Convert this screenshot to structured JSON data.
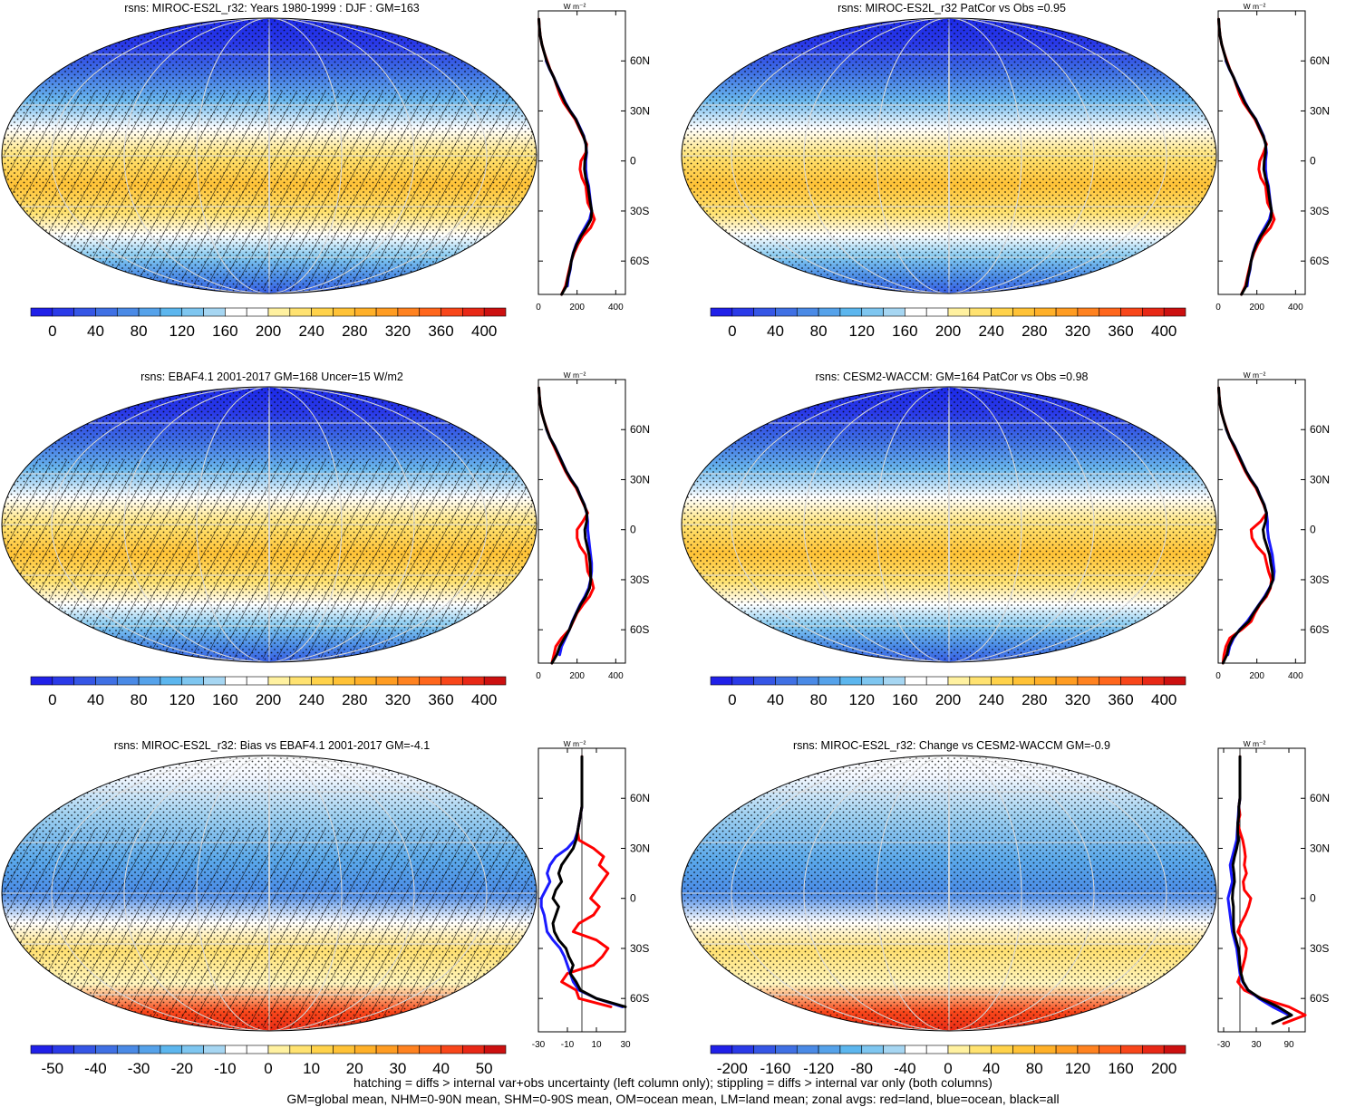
{
  "footer": {
    "line1": "hatching = diffs > internal var+obs uncertainty (left column only); stippling = diffs > internal var only (both columns)",
    "line2": "GM=global mean, NHM=0-90N mean, SHM=0-90S mean, OM=ocean mean, LM=land mean; zonal avgs: red=land, blue=ocean, black=all"
  },
  "colors": {
    "land": "#ff0000",
    "ocean": "#1a1aff",
    "all": "#000000",
    "abs_scale": [
      "#2020e8",
      "#2a3ae8",
      "#3556e6",
      "#3f70e4",
      "#4a8ae6",
      "#55a2ea",
      "#5cb6ee",
      "#7ec6f0",
      "#a6d6f2",
      "#ffffff",
      "#ffffff",
      "#fff1a0",
      "#ffe270",
      "#ffd24a",
      "#ffc236",
      "#ffb028",
      "#ff9c22",
      "#ff8220",
      "#ff661c",
      "#f8461a",
      "#e82816",
      "#cc1010"
    ],
    "diff_scale": [
      "#2020e8",
      "#2a3ae8",
      "#3556e6",
      "#3f70e4",
      "#4a8ae6",
      "#55a2ea",
      "#5cb6ee",
      "#7ec6f0",
      "#a6d6f2",
      "#ffffff",
      "#ffffff",
      "#fff1a0",
      "#ffe270",
      "#ffd24a",
      "#ffc236",
      "#ffb028",
      "#ff9c22",
      "#ff8220",
      "#ff661c",
      "#f8461a",
      "#e82816",
      "#cc1010"
    ]
  },
  "chart_data": [
    {
      "type": "heatmap",
      "title": "rsns: MIROC-ES2L_r32: Years 1980-1999 : DJF : GM=163",
      "colorbar_ticks": [
        "0",
        "40",
        "80",
        "120",
        "160",
        "200",
        "240",
        "280",
        "320",
        "360",
        "400"
      ],
      "hatching": true,
      "zonal": {
        "unit": "W m⁻²",
        "xlim": [
          0,
          450
        ],
        "xticks": [
          "0",
          "200",
          "400"
        ],
        "yticks": [
          "60N",
          "30N",
          "0",
          "30S",
          "60S"
        ],
        "lat": [
          85,
          80,
          75,
          70,
          65,
          60,
          55,
          50,
          45,
          40,
          35,
          30,
          25,
          20,
          15,
          10,
          5,
          0,
          -5,
          -10,
          -15,
          -20,
          -25,
          -30,
          -35,
          -40,
          -45,
          -50,
          -55,
          -60,
          -65,
          -70,
          -75,
          -80
        ],
        "land": [
          2,
          5,
          10,
          18,
          30,
          45,
          60,
          80,
          95,
          110,
          130,
          160,
          190,
          210,
          230,
          250,
          245,
          220,
          215,
          225,
          245,
          250,
          255,
          275,
          290,
          270,
          230,
          205,
          185,
          170,
          160,
          150,
          140,
          120
        ],
        "ocean": [
          null,
          null,
          null,
          null,
          null,
          40,
          58,
          80,
          100,
          120,
          140,
          165,
          195,
          215,
          235,
          245,
          250,
          245,
          245,
          250,
          260,
          265,
          270,
          275,
          265,
          240,
          215,
          195,
          180,
          170,
          165,
          155,
          150,
          null
        ],
        "all": [
          2,
          5,
          10,
          18,
          30,
          42,
          59,
          80,
          98,
          118,
          138,
          164,
          194,
          213,
          233,
          246,
          248,
          240,
          238,
          244,
          256,
          262,
          268,
          276,
          272,
          248,
          220,
          198,
          181,
          170,
          163,
          153,
          145,
          120
        ]
      }
    },
    {
      "type": "heatmap",
      "title": "rsns: MIROC-ES2L_r32 PatCor vs Obs =0.95",
      "colorbar_ticks": [
        "0",
        "40",
        "80",
        "120",
        "160",
        "200",
        "240",
        "280",
        "320",
        "360",
        "400"
      ],
      "hatching": false,
      "zonal": {
        "unit": "W m⁻²",
        "xlim": [
          0,
          450
        ],
        "xticks": [
          "0",
          "200",
          "400"
        ],
        "yticks": [
          "60N",
          "30N",
          "0",
          "30S",
          "60S"
        ],
        "lat": [
          85,
          80,
          75,
          70,
          65,
          60,
          55,
          50,
          45,
          40,
          35,
          30,
          25,
          20,
          15,
          10,
          5,
          0,
          -5,
          -10,
          -15,
          -20,
          -25,
          -30,
          -35,
          -40,
          -45,
          -50,
          -55,
          -60,
          -65,
          -70,
          -75,
          -80
        ],
        "land": [
          2,
          5,
          10,
          18,
          30,
          45,
          60,
          80,
          95,
          110,
          130,
          160,
          190,
          210,
          230,
          250,
          235,
          215,
          210,
          220,
          245,
          250,
          255,
          275,
          290,
          270,
          230,
          205,
          185,
          170,
          160,
          150,
          140,
          120
        ],
        "ocean": [
          null,
          null,
          null,
          null,
          null,
          40,
          58,
          80,
          100,
          120,
          140,
          165,
          195,
          215,
          235,
          245,
          250,
          245,
          245,
          250,
          260,
          265,
          270,
          275,
          265,
          240,
          215,
          195,
          180,
          170,
          165,
          155,
          150,
          null
        ],
        "all": [
          2,
          5,
          10,
          18,
          30,
          42,
          59,
          80,
          98,
          118,
          138,
          164,
          194,
          213,
          233,
          246,
          245,
          238,
          236,
          244,
          256,
          262,
          268,
          276,
          272,
          248,
          220,
          198,
          181,
          170,
          163,
          153,
          145,
          120
        ]
      }
    },
    {
      "type": "heatmap",
      "title": "rsns: EBAF4.1 2001-2017 GM=168 Uncer=15 W/m2",
      "colorbar_ticks": [
        "0",
        "40",
        "80",
        "120",
        "160",
        "200",
        "240",
        "280",
        "320",
        "360",
        "400"
      ],
      "hatching": true,
      "zonal": {
        "unit": "W m⁻²",
        "xlim": [
          0,
          450
        ],
        "xticks": [
          "0",
          "200",
          "400"
        ],
        "yticks": [
          "60N",
          "30N",
          "0",
          "30S",
          "60S"
        ],
        "lat": [
          85,
          80,
          75,
          70,
          65,
          60,
          55,
          50,
          45,
          40,
          35,
          30,
          25,
          20,
          15,
          10,
          5,
          0,
          -5,
          -10,
          -15,
          -20,
          -25,
          -30,
          -35,
          -40,
          -45,
          -50,
          -55,
          -60,
          -65,
          -70,
          -75,
          -80
        ],
        "land": [
          2,
          5,
          10,
          18,
          30,
          45,
          60,
          80,
          100,
          120,
          140,
          165,
          195,
          215,
          235,
          255,
          230,
          200,
          200,
          215,
          245,
          250,
          255,
          275,
          285,
          265,
          230,
          200,
          180,
          160,
          120,
          90,
          80,
          70
        ],
        "ocean": [
          null,
          null,
          null,
          null,
          null,
          42,
          60,
          85,
          105,
          125,
          145,
          170,
          200,
          218,
          238,
          250,
          255,
          255,
          260,
          265,
          270,
          275,
          275,
          270,
          260,
          240,
          215,
          195,
          175,
          160,
          140,
          120,
          110,
          null
        ],
        "all": [
          2,
          5,
          10,
          18,
          30,
          43,
          60,
          84,
          104,
          124,
          144,
          169,
          199,
          217,
          237,
          251,
          250,
          240,
          243,
          252,
          262,
          267,
          269,
          271,
          265,
          245,
          218,
          197,
          177,
          160,
          135,
          110,
          95,
          70
        ]
      }
    },
    {
      "type": "heatmap",
      "title": "rsns: CESM2-WACCM: GM=164 PatCor vs Obs =0.98",
      "colorbar_ticks": [
        "0",
        "40",
        "80",
        "120",
        "160",
        "200",
        "240",
        "280",
        "320",
        "360",
        "400"
      ],
      "hatching": false,
      "zonal": {
        "unit": "W m⁻²",
        "xlim": [
          0,
          450
        ],
        "xticks": [
          "0",
          "200",
          "400"
        ],
        "yticks": [
          "60N",
          "30N",
          "0",
          "30S",
          "60S"
        ],
        "lat": [
          85,
          80,
          75,
          70,
          65,
          60,
          55,
          50,
          45,
          40,
          35,
          30,
          25,
          20,
          15,
          10,
          5,
          0,
          -5,
          -10,
          -15,
          -20,
          -25,
          -30,
          -35,
          -40,
          -45,
          -50,
          -55,
          -60,
          -65,
          -70,
          -75,
          -80
        ],
        "land": [
          2,
          5,
          10,
          18,
          30,
          45,
          60,
          80,
          100,
          120,
          140,
          165,
          195,
          215,
          235,
          250,
          220,
          170,
          175,
          200,
          240,
          250,
          260,
          275,
          270,
          250,
          215,
          190,
          170,
          120,
          60,
          40,
          30,
          25
        ],
        "ocean": [
          null,
          null,
          null,
          null,
          null,
          42,
          60,
          85,
          105,
          125,
          145,
          170,
          200,
          218,
          238,
          250,
          255,
          255,
          260,
          270,
          280,
          285,
          290,
          285,
          265,
          240,
          210,
          180,
          150,
          110,
          80,
          60,
          50,
          null
        ],
        "all": [
          2,
          5,
          10,
          18,
          30,
          43,
          60,
          84,
          104,
          124,
          144,
          169,
          199,
          217,
          237,
          250,
          245,
          232,
          238,
          252,
          266,
          272,
          280,
          283,
          267,
          244,
          212,
          183,
          158,
          112,
          75,
          55,
          45,
          25
        ]
      }
    },
    {
      "type": "heatmap",
      "title": "rsns: MIROC-ES2L_r32: Bias vs EBAF4.1 2001-2017 GM=-4.1",
      "colorbar_ticks": [
        "-50",
        "-40",
        "-30",
        "-20",
        "-10",
        "0",
        "10",
        "20",
        "30",
        "40",
        "50"
      ],
      "hatching": true,
      "zonal": {
        "unit": "W m⁻²",
        "xlim": [
          -30,
          30
        ],
        "xticks": [
          "-30",
          "-10",
          "10",
          "30"
        ],
        "yticks": [
          "60N",
          "30N",
          "0",
          "30S",
          "60S"
        ],
        "lat": [
          85,
          80,
          75,
          70,
          65,
          60,
          55,
          50,
          45,
          40,
          35,
          30,
          25,
          20,
          15,
          10,
          5,
          0,
          -5,
          -10,
          -15,
          -20,
          -25,
          -30,
          -35,
          -40,
          -45,
          -50,
          -55,
          -60,
          -65
        ],
        "land": [
          0,
          0,
          0,
          0,
          0,
          0,
          0,
          -1,
          -2,
          -3,
          -2,
          8,
          15,
          12,
          18,
          14,
          10,
          6,
          12,
          8,
          -2,
          -6,
          10,
          18,
          14,
          8,
          -10,
          -14,
          -4,
          -2,
          20
        ],
        "ocean": [
          null,
          null,
          null,
          null,
          null,
          0,
          0,
          -1,
          -2,
          -3,
          -5,
          -10,
          -18,
          -22,
          -24,
          -22,
          -25,
          -28,
          -28,
          -26,
          -25,
          -24,
          -20,
          -15,
          -12,
          -10,
          -8,
          -6,
          -2,
          10,
          28
        ],
        "all": [
          0,
          0,
          0,
          0,
          0,
          0,
          0,
          -1,
          -2,
          -3,
          -4,
          -6,
          -10,
          -14,
          -16,
          -14,
          -18,
          -20,
          -16,
          -18,
          -20,
          -19,
          -16,
          -11,
          -9,
          -6,
          -8,
          -4,
          -1,
          10,
          30
        ]
      }
    },
    {
      "type": "heatmap",
      "title": "rsns: MIROC-ES2L_r32: Change vs CESM2-WACCM GM=-0.9",
      "colorbar_ticks": [
        "-200",
        "-160",
        "-120",
        "-80",
        "-40",
        "0",
        "40",
        "80",
        "120",
        "160",
        "200"
      ],
      "hatching": false,
      "zonal": {
        "unit": "W m⁻²",
        "xlim": [
          -40,
          120
        ],
        "xticks": [
          "-30",
          "30",
          "90"
        ],
        "yticks": [
          "60N",
          "30N",
          "0",
          "30S",
          "60S"
        ],
        "lat": [
          85,
          80,
          75,
          70,
          65,
          60,
          55,
          50,
          45,
          40,
          35,
          30,
          25,
          20,
          15,
          10,
          5,
          0,
          -5,
          -10,
          -15,
          -20,
          -25,
          -30,
          -35,
          -40,
          -45,
          -50,
          -55,
          -60,
          -65,
          -70,
          -75
        ],
        "land": [
          0,
          0,
          0,
          0,
          0,
          0,
          -2,
          0,
          -4,
          0,
          5,
          8,
          10,
          8,
          12,
          6,
          8,
          20,
          16,
          10,
          2,
          -4,
          6,
          12,
          10,
          6,
          2,
          -4,
          8,
          40,
          90,
          120,
          80
        ],
        "ocean": [
          null,
          null,
          null,
          null,
          null,
          0,
          -2,
          -3,
          -4,
          -5,
          -6,
          -10,
          -14,
          -18,
          -16,
          -14,
          -18,
          -22,
          -20,
          -18,
          -16,
          -14,
          -10,
          -6,
          -4,
          -2,
          0,
          5,
          15,
          35,
          60,
          90,
          null
        ],
        "all": [
          0,
          0,
          0,
          0,
          0,
          0,
          -2,
          -2,
          -4,
          -4,
          -3,
          -6,
          -10,
          -13,
          -11,
          -10,
          -13,
          -14,
          -12,
          -12,
          -12,
          -11,
          -7,
          -3,
          -1,
          0,
          2,
          6,
          15,
          38,
          70,
          95,
          60
        ]
      }
    }
  ]
}
